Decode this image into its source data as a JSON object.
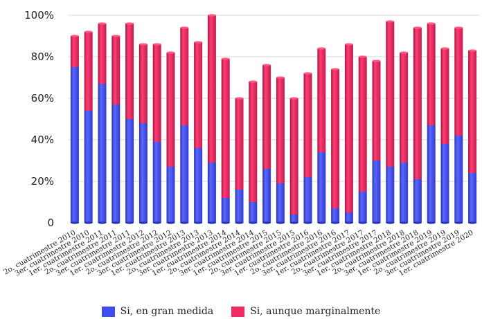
{
  "chart_data": {
    "type": "bar",
    "stacked": true,
    "categories": [
      "2o. cuatrimestre 2010",
      "3er. cuatrimestre 2010",
      "1er. cuatrimestre 2011",
      "2o. cuatrimestre 2011",
      "3er. cuatrimestre 2011",
      "1er. cuatrimestre 2012",
      "2o. cuatrimestre 2012",
      "3er. cuatrimestre 2012",
      "1er. cuatrimestre 2013",
      "2o. cuatrimestre 2013",
      "3er. cuatrimestre 2013",
      "1er. cuatrimestre 2014",
      "2o. cuatrimestre 2014",
      "3er. cuatrimestre 2014",
      "1er. cuatrimestre 2015",
      "2o. cuatrimestre 2015",
      "3er. cuatrimestre 2015",
      "1er. cuatrimestre 2016",
      "2o. cuatrimestre 2016",
      "3er. cuatrimestre 2016",
      "1er. cuatrimestre 2017",
      "2o. cuatrimestre 2017",
      "3er. cuatrimestre 2017",
      "1er. cuatrimestre 2018",
      "2o. cuatrimestre 2018",
      "3er. cuatrimestre 2018",
      "1er. cuatrimestre 2019",
      "2o. cuatrimestre 2019",
      "3er. cuatrimestre 2019",
      "1er. cuatrimestre 2020"
    ],
    "series": [
      {
        "name": "Si, en gran medida",
        "color": "#3d4df0",
        "values": [
          75,
          54,
          67,
          57,
          50,
          48,
          39,
          27,
          47,
          36,
          29,
          12,
          16,
          10,
          26,
          19,
          4,
          22,
          34,
          7,
          5,
          15,
          30,
          27,
          29,
          21,
          47,
          38,
          42,
          24
        ]
      },
      {
        "name": "Si, aunque marginalmente",
        "color": "#f02a62",
        "values": [
          15,
          38,
          29,
          33,
          46,
          38,
          47,
          55,
          47,
          51,
          71,
          67,
          44,
          58,
          50,
          51,
          56,
          50,
          50,
          67,
          81,
          65,
          48,
          70,
          53,
          73,
          49,
          46,
          52,
          59
        ]
      }
    ],
    "ylim": [
      0,
      100
    ],
    "yticks": [
      "0",
      "20%",
      "40%",
      "60%",
      "80%",
      "100%"
    ],
    "grid": true,
    "legend": "bottom"
  }
}
